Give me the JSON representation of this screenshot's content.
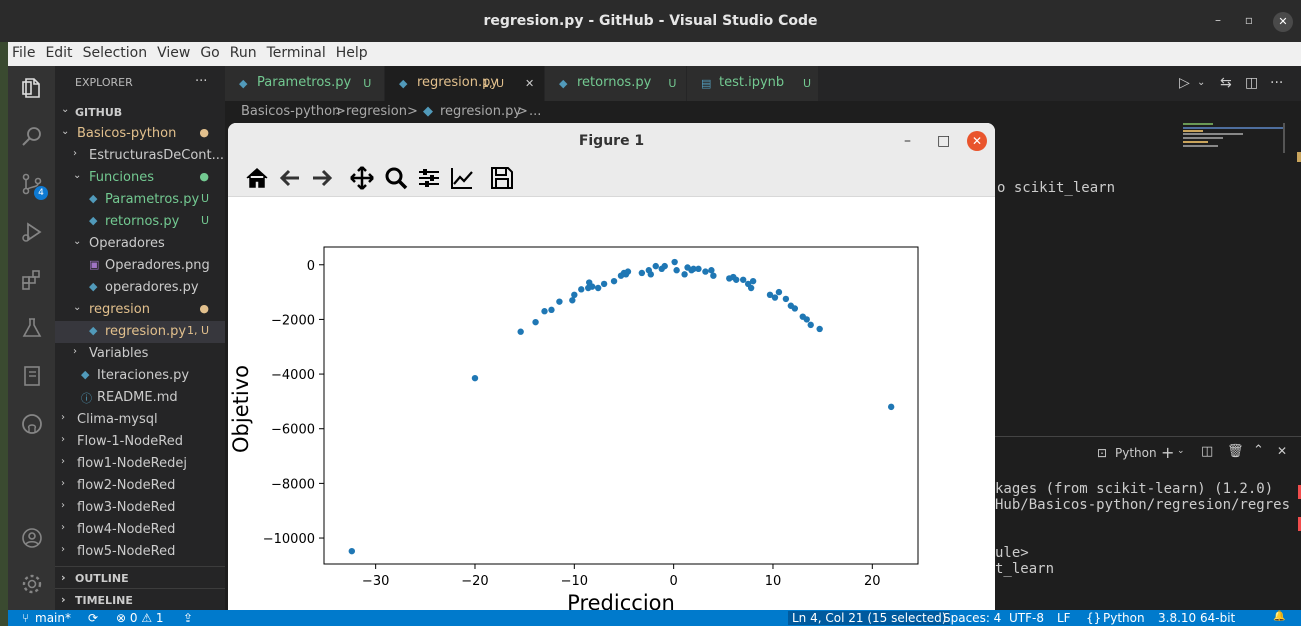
{
  "window": {
    "title": "regresion.py - GitHub - Visual Studio Code",
    "minimize": "–",
    "restore": "▫",
    "close": "✕"
  },
  "menu": [
    "File",
    "Edit",
    "Selection",
    "View",
    "Go",
    "Run",
    "Terminal",
    "Help"
  ],
  "activity": {
    "scm_badge": "4"
  },
  "explorer": {
    "header": "EXPLORER",
    "dots": "···",
    "root": "GITHUB",
    "tree": [
      {
        "label": "Basicos-python",
        "depth": 1,
        "chev": "⌄",
        "cls": "ylw",
        "status": "●",
        "statusCls": "ylw"
      },
      {
        "label": "EstructurasDeCont...",
        "depth": 2,
        "chev": "›",
        "cls": "",
        "status": "",
        "statusCls": ""
      },
      {
        "label": "Funciones",
        "depth": 2,
        "chev": "⌄",
        "cls": "grn",
        "status": "●",
        "statusCls": "grn"
      },
      {
        "label": "Parametros.py",
        "depth": 3,
        "chev": "",
        "cls": "grn",
        "status": "U",
        "statusCls": "grn",
        "icon": "py"
      },
      {
        "label": "retornos.py",
        "depth": 3,
        "chev": "",
        "cls": "grn",
        "status": "U",
        "statusCls": "grn",
        "icon": "py"
      },
      {
        "label": "Operadores",
        "depth": 2,
        "chev": "⌄",
        "cls": "",
        "status": "",
        "statusCls": ""
      },
      {
        "label": "Operadores.png",
        "depth": 3,
        "chev": "",
        "cls": "",
        "status": "",
        "statusCls": "",
        "icon": "img"
      },
      {
        "label": "operadores.py",
        "depth": 3,
        "chev": "",
        "cls": "",
        "status": "",
        "statusCls": "",
        "icon": "py"
      },
      {
        "label": "regresion",
        "depth": 2,
        "chev": "⌄",
        "cls": "ylw",
        "status": "●",
        "statusCls": "ylw"
      },
      {
        "label": "regresion.py",
        "depth": 3,
        "chev": "",
        "cls": "ylw",
        "status": "1, U",
        "statusCls": "ylw",
        "icon": "py",
        "selected": true
      },
      {
        "label": "Variables",
        "depth": 2,
        "chev": "›",
        "cls": "",
        "status": "",
        "statusCls": ""
      },
      {
        "label": "Iteraciones.py",
        "depth": 2,
        "chev": "",
        "cls": "",
        "status": "",
        "statusCls": "",
        "icon": "py"
      },
      {
        "label": "README.md",
        "depth": 2,
        "chev": "",
        "cls": "",
        "status": "",
        "statusCls": "",
        "icon": "info"
      },
      {
        "label": "Clima-mysql",
        "depth": 1,
        "chev": "›",
        "cls": "",
        "status": "",
        "statusCls": ""
      },
      {
        "label": "Flow-1-NodeRed",
        "depth": 1,
        "chev": "›",
        "cls": "",
        "status": "",
        "statusCls": ""
      },
      {
        "label": "flow1-NodeRedej",
        "depth": 1,
        "chev": "›",
        "cls": "",
        "status": "",
        "statusCls": ""
      },
      {
        "label": "flow2-NodeRed",
        "depth": 1,
        "chev": "›",
        "cls": "",
        "status": "",
        "statusCls": ""
      },
      {
        "label": "flow3-NodeRed",
        "depth": 1,
        "chev": "›",
        "cls": "",
        "status": "",
        "statusCls": ""
      },
      {
        "label": "flow4-NodeRed",
        "depth": 1,
        "chev": "›",
        "cls": "",
        "status": "",
        "statusCls": ""
      },
      {
        "label": "flow5-NodeRed",
        "depth": 1,
        "chev": "›",
        "cls": "",
        "status": "",
        "statusCls": ""
      }
    ],
    "outline": "OUTLINE",
    "timeline": "TIMELINE"
  },
  "tabs": [
    {
      "label": "Parametros.py",
      "status": "U",
      "active": false
    },
    {
      "label": "regresion.py",
      "status": "1, U",
      "active": true,
      "close": "✕"
    },
    {
      "label": "retornos.py",
      "status": "U",
      "active": false
    },
    {
      "label": "test.ipynb",
      "status": "U",
      "active": false
    }
  ],
  "breadcrumb": {
    "a": "Basicos-python",
    "b": "regresion",
    "c": "regresion.py",
    "d": "...",
    "sep": ">"
  },
  "code_visible": {
    "line1": "o scikit_learn"
  },
  "panel": {
    "shell": "Python",
    "lines": [
      "kages (from scikit-learn) (1.2.0)",
      "Hub/Basicos-python/regresion/regres",
      "",
      "ule>",
      "t_learn"
    ]
  },
  "figure": {
    "title": "Figure 1",
    "minimize": "–",
    "maximize": "□",
    "close": "✕"
  },
  "chart_data": {
    "type": "scatter",
    "xlabel": "Prediccion",
    "ylabel": "Objetivo",
    "xlim": [
      -35.2,
      24.6
    ],
    "ylim": [
      -10950,
      650
    ],
    "xticks": [
      -30,
      -20,
      -10,
      0,
      10,
      20
    ],
    "yticks": [
      0,
      -2000,
      -4000,
      -6000,
      -8000,
      -10000
    ],
    "xtick_labels": [
      "−30",
      "−20",
      "−10",
      "0",
      "10",
      "20"
    ],
    "ytick_labels": [
      "0",
      "−2000",
      "−4000",
      "−6000",
      "−8000",
      "−10000"
    ],
    "color": "#1f77b4",
    "points": [
      [
        -32.4,
        -10480
      ],
      [
        -20.0,
        -4150
      ],
      [
        -15.4,
        -2450
      ],
      [
        -13.9,
        -2100
      ],
      [
        -13.0,
        -1700
      ],
      [
        -12.3,
        -1650
      ],
      [
        -11.5,
        -1350
      ],
      [
        -10.2,
        -1300
      ],
      [
        -10.0,
        -1100
      ],
      [
        -9.3,
        -900
      ],
      [
        -8.6,
        -850
      ],
      [
        -8.5,
        -650
      ],
      [
        -8.2,
        -800
      ],
      [
        -7.6,
        -850
      ],
      [
        -7.0,
        -700
      ],
      [
        -6.0,
        -600
      ],
      [
        -5.3,
        -400
      ],
      [
        -5.0,
        -300
      ],
      [
        -4.8,
        -350
      ],
      [
        -4.6,
        -250
      ],
      [
        -3.2,
        -300
      ],
      [
        -2.5,
        -200
      ],
      [
        -2.3,
        -350
      ],
      [
        -1.8,
        -50
      ],
      [
        -1.2,
        -150
      ],
      [
        -0.9,
        -50
      ],
      [
        0.1,
        100
      ],
      [
        0.3,
        -200
      ],
      [
        1.1,
        -350
      ],
      [
        1.4,
        -100
      ],
      [
        1.8,
        -200
      ],
      [
        2.0,
        -150
      ],
      [
        2.5,
        -150
      ],
      [
        3.2,
        -250
      ],
      [
        3.8,
        -200
      ],
      [
        4.0,
        -400
      ],
      [
        5.6,
        -500
      ],
      [
        6.0,
        -450
      ],
      [
        6.3,
        -550
      ],
      [
        7.0,
        -550
      ],
      [
        7.5,
        -700
      ],
      [
        7.8,
        -850
      ],
      [
        8.0,
        -600
      ],
      [
        9.7,
        -1100
      ],
      [
        10.2,
        -1200
      ],
      [
        10.6,
        -1000
      ],
      [
        11.3,
        -1250
      ],
      [
        11.8,
        -1500
      ],
      [
        12.2,
        -1600
      ],
      [
        13.0,
        -1900
      ],
      [
        13.4,
        -2000
      ],
      [
        13.8,
        -2200
      ],
      [
        14.7,
        -2350
      ],
      [
        21.9,
        -5200
      ]
    ]
  },
  "status": {
    "branch": "main*",
    "sync": "⟳",
    "problems": "⊗ 0 ⚠ 1",
    "live": "⇪",
    "position": "Ln 4, Col 21 (15 selected)",
    "spaces": "Spaces: 4",
    "encoding": "UTF-8",
    "eol": "LF",
    "language": "Python",
    "interpreter": "3.8.10 64-bit",
    "bell": "🔔"
  }
}
